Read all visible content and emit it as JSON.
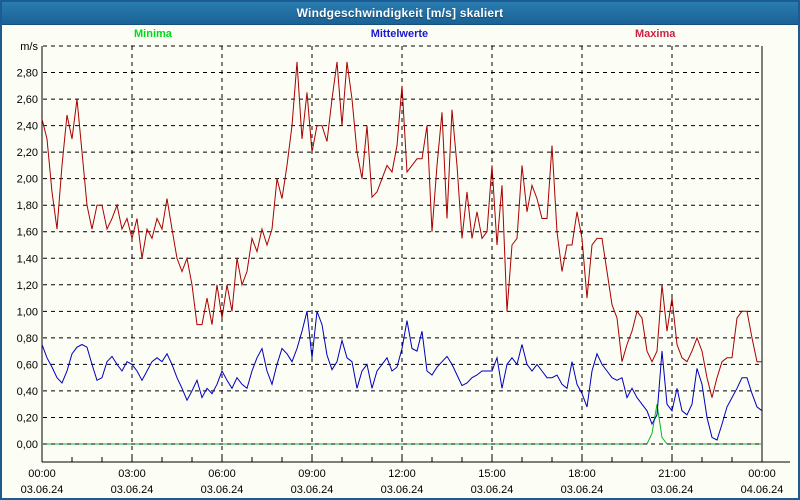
{
  "window": {
    "title": "Windgeschwindigkeit [m/s] skaliert"
  },
  "colors": {
    "title_bar": "#2173a6",
    "frame_border": "#1d5c92",
    "background": "#fcfdf5",
    "axis": "#000000",
    "minima_label": "#00d91c",
    "mittelwerte_label": "#1a1acc",
    "maxima_label": "#cc2244",
    "minima_line": "#00bb22",
    "mittelwerte_line": "#0000bb",
    "maxima_line": "#aa0000"
  },
  "chart_data": {
    "type": "line",
    "title": "Windgeschwindigkeit [m/s] skaliert",
    "y_axis_unit": "m/s",
    "ylim": [
      0,
      3.0
    ],
    "ytick_step": 0.2,
    "grid": "dashed",
    "legend_position": "top",
    "sample_minutes": 10,
    "x_start_hour": 0,
    "x_end_hour": 24,
    "y_ticks": [
      {
        "v": 0.0,
        "label": "0,00"
      },
      {
        "v": 0.2,
        "label": "0,20"
      },
      {
        "v": 0.4,
        "label": "0,40"
      },
      {
        "v": 0.6,
        "label": "0,60"
      },
      {
        "v": 0.8,
        "label": "0,80"
      },
      {
        "v": 1.0,
        "label": "1,00"
      },
      {
        "v": 1.2,
        "label": "1,20"
      },
      {
        "v": 1.4,
        "label": "1,40"
      },
      {
        "v": 1.6,
        "label": "1,60"
      },
      {
        "v": 1.8,
        "label": "1,80"
      },
      {
        "v": 2.0,
        "label": "2,00"
      },
      {
        "v": 2.2,
        "label": "2,20"
      },
      {
        "v": 2.4,
        "label": "2,40"
      },
      {
        "v": 2.6,
        "label": "2,60"
      },
      {
        "v": 2.8,
        "label": "2,80"
      }
    ],
    "x_ticks": [
      {
        "hour": 0,
        "time": "00:00",
        "date": "03.06.24"
      },
      {
        "hour": 3,
        "time": "03:00",
        "date": "03.06.24"
      },
      {
        "hour": 6,
        "time": "06:00",
        "date": "03.06.24"
      },
      {
        "hour": 9,
        "time": "09:00",
        "date": "03.06.24"
      },
      {
        "hour": 12,
        "time": "12:00",
        "date": "03.06.24"
      },
      {
        "hour": 15,
        "time": "15:00",
        "date": "03.06.24"
      },
      {
        "hour": 18,
        "time": "18:00",
        "date": "03.06.24"
      },
      {
        "hour": 21,
        "time": "21:00",
        "date": "03.06.24"
      },
      {
        "hour": 24,
        "time": "00:00",
        "date": "04.06.24"
      }
    ],
    "series": [
      {
        "name": "Minima",
        "color": "#00bb22",
        "label_color": "#00d91c",
        "values": [
          0,
          0,
          0,
          0,
          0,
          0,
          0,
          0,
          0,
          0,
          0,
          0,
          0,
          0,
          0,
          0,
          0,
          0,
          0,
          0,
          0,
          0,
          0,
          0,
          0,
          0,
          0,
          0,
          0,
          0,
          0,
          0,
          0,
          0,
          0,
          0,
          0,
          0,
          0,
          0,
          0,
          0,
          0,
          0,
          0,
          0,
          0,
          0,
          0,
          0,
          0,
          0,
          0,
          0,
          0,
          0,
          0,
          0,
          0,
          0,
          0,
          0,
          0,
          0,
          0,
          0,
          0,
          0,
          0,
          0,
          0,
          0,
          0,
          0,
          0,
          0,
          0,
          0,
          0,
          0,
          0,
          0,
          0,
          0,
          0,
          0,
          0,
          0,
          0,
          0,
          0,
          0,
          0,
          0,
          0,
          0,
          0,
          0,
          0,
          0,
          0,
          0,
          0,
          0,
          0,
          0,
          0,
          0,
          0,
          0,
          0,
          0,
          0,
          0,
          0,
          0,
          0,
          0,
          0,
          0,
          0,
          0,
          0.08,
          0.3,
          0.05,
          0,
          0,
          0,
          0,
          0,
          0,
          0,
          0,
          0,
          0,
          0,
          0,
          0,
          0,
          0,
          0,
          0,
          0,
          0,
          0
        ]
      },
      {
        "name": "Mittelwerte",
        "color": "#0000bb",
        "label_color": "#1a1acc",
        "values": [
          0.75,
          0.65,
          0.58,
          0.5,
          0.46,
          0.55,
          0.68,
          0.73,
          0.75,
          0.73,
          0.6,
          0.48,
          0.5,
          0.62,
          0.66,
          0.6,
          0.55,
          0.62,
          0.6,
          0.55,
          0.48,
          0.55,
          0.62,
          0.65,
          0.62,
          0.68,
          0.6,
          0.5,
          0.42,
          0.33,
          0.4,
          0.48,
          0.35,
          0.42,
          0.38,
          0.45,
          0.55,
          0.48,
          0.42,
          0.5,
          0.45,
          0.42,
          0.55,
          0.65,
          0.72,
          0.55,
          0.45,
          0.6,
          0.72,
          0.68,
          0.62,
          0.72,
          0.85,
          1.0,
          0.65,
          1.0,
          0.9,
          0.67,
          0.56,
          0.62,
          0.78,
          0.65,
          0.62,
          0.42,
          0.55,
          0.6,
          0.42,
          0.55,
          0.6,
          0.65,
          0.55,
          0.58,
          0.72,
          0.93,
          0.72,
          0.7,
          0.85,
          0.55,
          0.52,
          0.58,
          0.62,
          0.66,
          0.6,
          0.52,
          0.44,
          0.46,
          0.5,
          0.52,
          0.55,
          0.55,
          0.55,
          0.65,
          0.42,
          0.6,
          0.65,
          0.6,
          0.75,
          0.6,
          0.55,
          0.6,
          0.55,
          0.5,
          0.5,
          0.52,
          0.45,
          0.42,
          0.62,
          0.45,
          0.38,
          0.28,
          0.55,
          0.68,
          0.6,
          0.55,
          0.5,
          0.48,
          0.5,
          0.35,
          0.42,
          0.35,
          0.3,
          0.25,
          0.15,
          0.22,
          0.7,
          0.3,
          0.25,
          0.42,
          0.25,
          0.22,
          0.3,
          0.57,
          0.45,
          0.2,
          0.05,
          0.03,
          0.15,
          0.28,
          0.35,
          0.42,
          0.5,
          0.5,
          0.38,
          0.28,
          0.25
        ]
      },
      {
        "name": "Maxima",
        "color": "#aa0000",
        "label_color": "#cc2244",
        "values": [
          2.45,
          2.3,
          1.9,
          1.62,
          2.1,
          2.48,
          2.3,
          2.6,
          2.2,
          1.8,
          1.62,
          1.8,
          1.8,
          1.62,
          1.7,
          1.8,
          1.62,
          1.7,
          1.55,
          1.7,
          1.4,
          1.62,
          1.55,
          1.7,
          1.62,
          1.85,
          1.62,
          1.4,
          1.3,
          1.4,
          1.2,
          0.9,
          0.9,
          1.1,
          0.9,
          1.2,
          0.95,
          1.2,
          1.0,
          1.4,
          1.2,
          1.3,
          1.55,
          1.45,
          1.62,
          1.5,
          1.62,
          2.0,
          1.85,
          2.1,
          2.4,
          2.88,
          2.3,
          2.65,
          2.2,
          2.4,
          2.4,
          2.28,
          2.6,
          2.88,
          2.4,
          2.88,
          2.6,
          2.2,
          2.0,
          2.4,
          1.86,
          1.9,
          2.0,
          2.1,
          2.05,
          2.25,
          2.7,
          2.05,
          2.1,
          2.15,
          2.15,
          2.4,
          1.6,
          2.1,
          2.5,
          1.7,
          2.52,
          2.1,
          1.55,
          1.9,
          1.55,
          1.75,
          1.55,
          1.6,
          2.1,
          1.5,
          1.95,
          1.0,
          1.5,
          1.55,
          2.1,
          1.75,
          1.95,
          1.85,
          1.7,
          1.7,
          2.25,
          1.6,
          1.3,
          1.5,
          1.5,
          1.75,
          1.55,
          1.1,
          1.5,
          1.55,
          1.55,
          1.3,
          1.05,
          0.95,
          0.62,
          0.75,
          0.85,
          1.0,
          0.95,
          0.7,
          0.62,
          0.7,
          1.2,
          0.85,
          1.1,
          0.75,
          0.65,
          0.62,
          0.7,
          0.8,
          0.7,
          0.5,
          0.35,
          0.5,
          0.62,
          0.65,
          0.65,
          0.95,
          1.0,
          1.0,
          0.8,
          0.62,
          0.62
        ]
      }
    ]
  }
}
